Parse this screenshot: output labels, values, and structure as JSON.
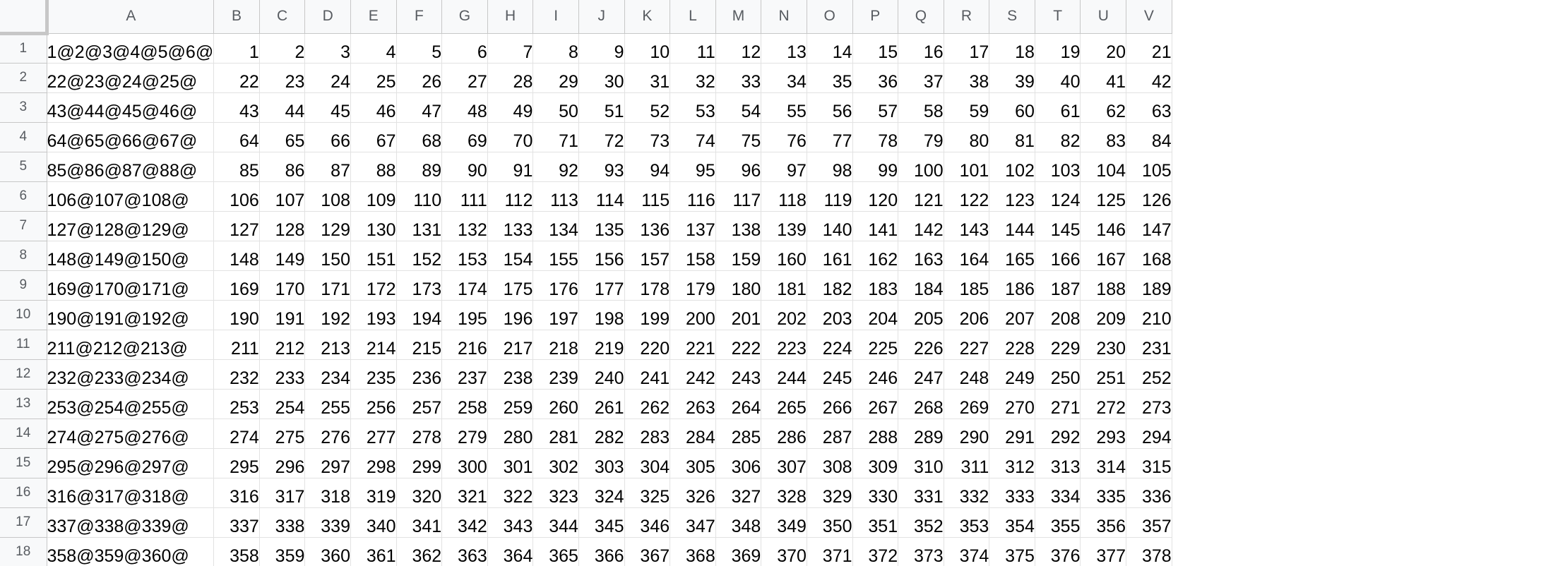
{
  "sheet": {
    "columns": [
      "A",
      "B",
      "C",
      "D",
      "E",
      "F",
      "G",
      "H",
      "I",
      "J",
      "K",
      "L",
      "M",
      "N",
      "O",
      "P",
      "Q",
      "R",
      "S",
      "T",
      "U",
      "V"
    ],
    "rows": [
      {
        "num": "1",
        "a": "1@2@3@4@5@6@",
        "values": [
          "1",
          "2",
          "3",
          "4",
          "5",
          "6",
          "7",
          "8",
          "9",
          "10",
          "11",
          "12",
          "13",
          "14",
          "15",
          "16",
          "17",
          "18",
          "19",
          "20",
          "21"
        ]
      },
      {
        "num": "2",
        "a": "22@23@24@25@",
        "values": [
          "22",
          "23",
          "24",
          "25",
          "26",
          "27",
          "28",
          "29",
          "30",
          "31",
          "32",
          "33",
          "34",
          "35",
          "36",
          "37",
          "38",
          "39",
          "40",
          "41",
          "42"
        ]
      },
      {
        "num": "3",
        "a": "43@44@45@46@",
        "values": [
          "43",
          "44",
          "45",
          "46",
          "47",
          "48",
          "49",
          "50",
          "51",
          "52",
          "53",
          "54",
          "55",
          "56",
          "57",
          "58",
          "59",
          "60",
          "61",
          "62",
          "63"
        ]
      },
      {
        "num": "4",
        "a": "64@65@66@67@",
        "values": [
          "64",
          "65",
          "66",
          "67",
          "68",
          "69",
          "70",
          "71",
          "72",
          "73",
          "74",
          "75",
          "76",
          "77",
          "78",
          "79",
          "80",
          "81",
          "82",
          "83",
          "84"
        ]
      },
      {
        "num": "5",
        "a": "85@86@87@88@",
        "values": [
          "85",
          "86",
          "87",
          "88",
          "89",
          "90",
          "91",
          "92",
          "93",
          "94",
          "95",
          "96",
          "97",
          "98",
          "99",
          "100",
          "101",
          "102",
          "103",
          "104",
          "105"
        ]
      },
      {
        "num": "6",
        "a": "106@107@108@",
        "values": [
          "106",
          "107",
          "108",
          "109",
          "110",
          "111",
          "112",
          "113",
          "114",
          "115",
          "116",
          "117",
          "118",
          "119",
          "120",
          "121",
          "122",
          "123",
          "124",
          "125",
          "126"
        ]
      },
      {
        "num": "7",
        "a": "127@128@129@",
        "values": [
          "127",
          "128",
          "129",
          "130",
          "131",
          "132",
          "133",
          "134",
          "135",
          "136",
          "137",
          "138",
          "139",
          "140",
          "141",
          "142",
          "143",
          "144",
          "145",
          "146",
          "147"
        ]
      },
      {
        "num": "8",
        "a": "148@149@150@",
        "values": [
          "148",
          "149",
          "150",
          "151",
          "152",
          "153",
          "154",
          "155",
          "156",
          "157",
          "158",
          "159",
          "160",
          "161",
          "162",
          "163",
          "164",
          "165",
          "166",
          "167",
          "168"
        ]
      },
      {
        "num": "9",
        "a": "169@170@171@",
        "values": [
          "169",
          "170",
          "171",
          "172",
          "173",
          "174",
          "175",
          "176",
          "177",
          "178",
          "179",
          "180",
          "181",
          "182",
          "183",
          "184",
          "185",
          "186",
          "187",
          "188",
          "189"
        ]
      },
      {
        "num": "10",
        "a": "190@191@192@",
        "values": [
          "190",
          "191",
          "192",
          "193",
          "194",
          "195",
          "196",
          "197",
          "198",
          "199",
          "200",
          "201",
          "202",
          "203",
          "204",
          "205",
          "206",
          "207",
          "208",
          "209",
          "210"
        ]
      },
      {
        "num": "11",
        "a": "211@212@213@",
        "values": [
          "211",
          "212",
          "213",
          "214",
          "215",
          "216",
          "217",
          "218",
          "219",
          "220",
          "221",
          "222",
          "223",
          "224",
          "225",
          "226",
          "227",
          "228",
          "229",
          "230",
          "231"
        ]
      },
      {
        "num": "12",
        "a": "232@233@234@",
        "values": [
          "232",
          "233",
          "234",
          "235",
          "236",
          "237",
          "238",
          "239",
          "240",
          "241",
          "242",
          "243",
          "244",
          "245",
          "246",
          "247",
          "248",
          "249",
          "250",
          "251",
          "252"
        ]
      },
      {
        "num": "13",
        "a": "253@254@255@",
        "values": [
          "253",
          "254",
          "255",
          "256",
          "257",
          "258",
          "259",
          "260",
          "261",
          "262",
          "263",
          "264",
          "265",
          "266",
          "267",
          "268",
          "269",
          "270",
          "271",
          "272",
          "273"
        ]
      },
      {
        "num": "14",
        "a": "274@275@276@",
        "values": [
          "274",
          "275",
          "276",
          "277",
          "278",
          "279",
          "280",
          "281",
          "282",
          "283",
          "284",
          "285",
          "286",
          "287",
          "288",
          "289",
          "290",
          "291",
          "292",
          "293",
          "294"
        ]
      },
      {
        "num": "15",
        "a": "295@296@297@",
        "values": [
          "295",
          "296",
          "297",
          "298",
          "299",
          "300",
          "301",
          "302",
          "303",
          "304",
          "305",
          "306",
          "307",
          "308",
          "309",
          "310",
          "311",
          "312",
          "313",
          "314",
          "315"
        ]
      },
      {
        "num": "16",
        "a": "316@317@318@",
        "values": [
          "316",
          "317",
          "318",
          "319",
          "320",
          "321",
          "322",
          "323",
          "324",
          "325",
          "326",
          "327",
          "328",
          "329",
          "330",
          "331",
          "332",
          "333",
          "334",
          "335",
          "336"
        ]
      },
      {
        "num": "17",
        "a": "337@338@339@",
        "values": [
          "337",
          "338",
          "339",
          "340",
          "341",
          "342",
          "343",
          "344",
          "345",
          "346",
          "347",
          "348",
          "349",
          "350",
          "351",
          "352",
          "353",
          "354",
          "355",
          "356",
          "357"
        ]
      },
      {
        "num": "18",
        "a": "358@359@360@",
        "values": [
          "358",
          "359",
          "360",
          "361",
          "362",
          "363",
          "364",
          "365",
          "366",
          "367",
          "368",
          "369",
          "370",
          "371",
          "372",
          "373",
          "374",
          "375",
          "376",
          "377",
          "378"
        ]
      }
    ]
  }
}
